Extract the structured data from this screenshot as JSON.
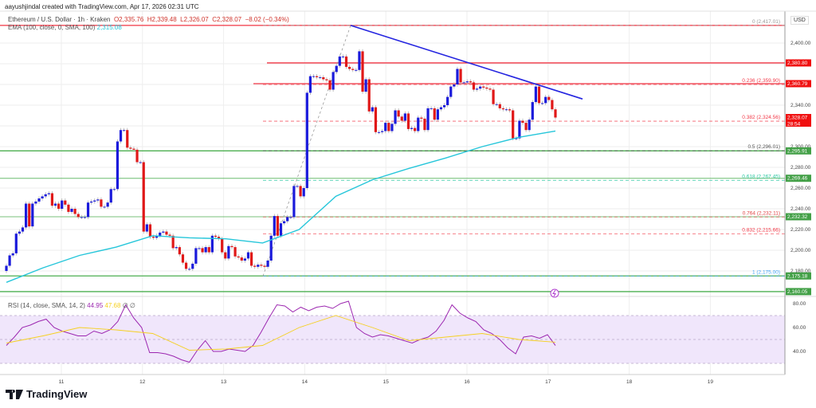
{
  "header": {
    "credit": "aayushjindal created with TradingView.com, Apr 17, 2026 02:31 UTC",
    "symbol": "Ethereum / U.S. Dollar · 1h · Kraken",
    "open": "O2,335.76",
    "high": "H2,339.48",
    "low": "L2,326.07",
    "close": "C2,328.07",
    "change": "−8.02 (−0.34%)",
    "ema_label": "EMA (100, close, 0, SMA, 100)",
    "ema_value": "2,315.08"
  },
  "rsi_header": {
    "label": "RSI (14, close, SMA, 14, 2)",
    "rsi_value": "44.95",
    "sma_value": "47.68",
    "extra1": "∅",
    "extra2": "∅"
  },
  "currency": "USD",
  "logo_text": "TradingView",
  "colors": {
    "up": "#1a1adb",
    "down": "#e01818",
    "ema": "#26c6da",
    "rsi": "#9c27b0",
    "rsi_sma": "#f5d020",
    "support": "#4caf50",
    "resistance": "#f23645",
    "trendline": "#2424e0",
    "rsi_band": "#f0e6fb"
  },
  "chart_data": {
    "type": "candlestick",
    "interval": "1h",
    "x_ticks": [
      "11",
      "12",
      "13",
      "14",
      "15",
      "16",
      "17",
      "18",
      "19"
    ],
    "y_ticks": [
      "2,400.00",
      "2,340.00",
      "2,300.00",
      "2,280.00",
      "2,260.00",
      "2,240.00",
      "2,220.00",
      "2,200.00",
      "2,180.00"
    ],
    "y_tick_values": [
      2400,
      2340,
      2300,
      2280,
      2260,
      2240,
      2220,
      2200,
      2180
    ],
    "ylim": [
      2150,
      2430
    ],
    "grid": true,
    "closes": [
      2185,
      2195,
      2197,
      2216,
      2218,
      2222,
      2245,
      2223,
      2245,
      2247,
      2250,
      2252,
      2254,
      2255,
      2243,
      2245,
      2240,
      2248,
      2244,
      2237,
      2240,
      2235,
      2232,
      2232,
      2232,
      2246,
      2247,
      2248,
      2249,
      2242,
      2242,
      2246,
      2259,
      2259,
      2305,
      2316,
      2316,
      2299,
      2298,
      2297,
      2285,
      2285,
      2218,
      2225,
      2213,
      2212,
      2214,
      2217,
      2218,
      2215,
      2214,
      2202,
      2203,
      2196,
      2188,
      2182,
      2182,
      2187,
      2202,
      2202,
      2198,
      2203,
      2198,
      2214,
      2213,
      2211,
      2198,
      2192,
      2204,
      2203,
      2194,
      2193,
      2190,
      2192,
      2198,
      2185,
      2184,
      2186,
      2185,
      2184,
      2190,
      2214,
      2233,
      2214,
      2226,
      2228,
      2232,
      2232,
      2262,
      2262,
      2252,
      2260,
      2352,
      2368,
      2368,
      2367,
      2367,
      2365,
      2364,
      2355,
      2372,
      2378,
      2387,
      2387,
      2377,
      2375,
      2374,
      2374,
      2392,
      2353,
      2365,
      2334,
      2338,
      2314,
      2314,
      2315,
      2323,
      2315,
      2322,
      2335,
      2329,
      2325,
      2332,
      2317,
      2318,
      2315,
      2328,
      2327,
      2316,
      2337,
      2337,
      2326,
      2336,
      2338,
      2340,
      2348,
      2358,
      2360,
      2375,
      2362,
      2362,
      2363,
      2362,
      2355,
      2356,
      2358,
      2357,
      2356,
      2355,
      2341,
      2341,
      2337,
      2336,
      2336,
      2335,
      2308,
      2308,
      2325,
      2323,
      2316,
      2326,
      2343,
      2358,
      2342,
      2342,
      2348,
      2345,
      2336,
      2328.07
    ],
    "ema100": [
      2169,
      2183,
      2195,
      2203,
      2214,
      2212,
      2211,
      2207,
      2220,
      2252,
      2268,
      2279,
      2289,
      2300,
      2309,
      2315.08
    ],
    "horizontal_levels": [
      {
        "price": 2417.01,
        "kind": "resistance"
      },
      {
        "price": 2380.8,
        "kind": "resistance",
        "tag": "2,380.80"
      },
      {
        "price": 2360.79,
        "kind": "resistance",
        "tag": "2,360.79"
      },
      {
        "price": 2295.91,
        "kind": "support",
        "tag": "2,295.91"
      },
      {
        "price": 2269.46,
        "kind": "support",
        "tag": "2,269.46"
      },
      {
        "price": 2232.32,
        "kind": "support",
        "tag": "2,232.32"
      },
      {
        "price": 2175.18,
        "kind": "support",
        "tag": "2,175.18"
      },
      {
        "price": 2160.05,
        "kind": "support",
        "tag": "2,160.05"
      }
    ],
    "last_price_tag": {
      "price": 2328.07,
      "label": "2,328.07",
      "countdown": "28:54"
    },
    "fibonacci": [
      {
        "label": "0 (2,417.01)",
        "price": 2417.01,
        "color": "#999999"
      },
      {
        "label": "0.236 (2,359.90)",
        "price": 2359.9,
        "color": "#f23645"
      },
      {
        "label": "0.382 (2,324.56)",
        "price": 2324.56,
        "color": "#f23645"
      },
      {
        "label": "0.5 (2,296.01)",
        "price": 2296.01,
        "color": "#555555"
      },
      {
        "label": "0.618 (2,267.45)",
        "price": 2267.45,
        "color": "#26c6a0"
      },
      {
        "label": "0.764 (2,232.11)",
        "price": 2232.11,
        "color": "#e04040"
      },
      {
        "label": "0.832 (2,215.66)",
        "price": 2215.66,
        "color": "#f23645"
      },
      {
        "label": "1 (2,175.00)",
        "price": 2175.0,
        "color": "#42a5f5"
      }
    ],
    "trendline": {
      "from_price": 2417,
      "to_price": 2346
    },
    "rsi": {
      "y_ticks": [
        "80.00",
        "60.00",
        "40.00"
      ],
      "y_tick_values": [
        80,
        60,
        40
      ],
      "band": [
        30,
        70
      ],
      "values": [
        45,
        52,
        60,
        62,
        65,
        67,
        60,
        57,
        55,
        53,
        53,
        57,
        55,
        58,
        65,
        79,
        68,
        60,
        39,
        39,
        38,
        36,
        33,
        31,
        41,
        49,
        40,
        40,
        42,
        41,
        40,
        45,
        56,
        68,
        79,
        78,
        73,
        77,
        74,
        77,
        78,
        76,
        80,
        82,
        60,
        55,
        52,
        54,
        53,
        51,
        49,
        47,
        50,
        52,
        57,
        66,
        79,
        72,
        68,
        65,
        58,
        55,
        50,
        43,
        38,
        52,
        53,
        51,
        54,
        44.95
      ],
      "sma": [
        47,
        53,
        60,
        58,
        55,
        41,
        42,
        45,
        60,
        70,
        60,
        49,
        52,
        55,
        50,
        47.68
      ]
    }
  }
}
